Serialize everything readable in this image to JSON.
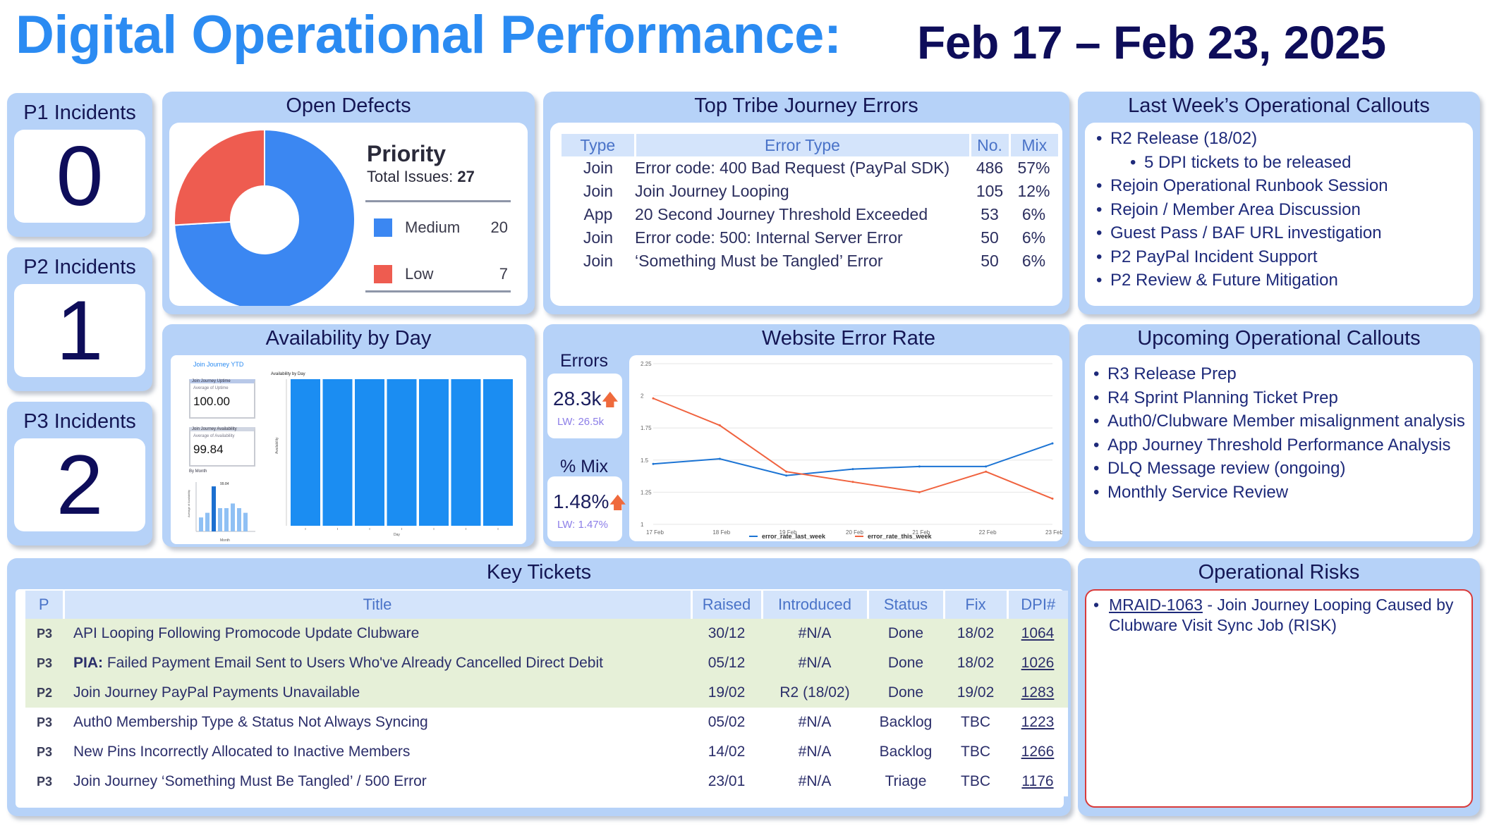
{
  "header": {
    "title": "Digital Operational Performance:",
    "date_range": "Feb 17 – Feb 23, 2025"
  },
  "incidents": [
    {
      "label": "P1 Incidents",
      "value": "0"
    },
    {
      "label": "P2 Incidents",
      "value": "1"
    },
    {
      "label": "P3 Incidents",
      "value": "2"
    }
  ],
  "open_defects": {
    "title": "Open Defects",
    "legend_title": "Priority",
    "total_label": "Total Issues:",
    "total_value": "27",
    "items": [
      {
        "label": "Medium",
        "value": "20",
        "color": "#3b87f2"
      },
      {
        "label": "Low",
        "value": "7",
        "color": "#ee5c50"
      }
    ]
  },
  "tribe_errors": {
    "title": "Top Tribe Journey Errors",
    "headers": [
      "Type",
      "Error Type",
      "No.",
      "Mix"
    ],
    "rows": [
      [
        "Join",
        "Error code: 400 Bad Request (PayPal SDK)",
        "486",
        "57%"
      ],
      [
        "Join",
        "Join Journey Looping",
        "105",
        "12%"
      ],
      [
        "App",
        "20 Second Journey Threshold Exceeded",
        "53",
        "6%"
      ],
      [
        "Join",
        "Error code: 500: Internal Server Error",
        "50",
        "6%"
      ],
      [
        "Join",
        "‘Something Must be Tangled’ Error",
        "50",
        "6%"
      ]
    ]
  },
  "last_week_callouts": {
    "title": "Last Week’s Operational Callouts",
    "items": [
      "R2 Release (18/02)",
      "5 DPI tickets to be released",
      "Rejoin Operational Runbook Session",
      "Rejoin / Member Area Discussion",
      "Guest Pass / BAF URL investigation",
      "P2 PayPal Incident Support",
      "P2 Review & Future Mitigation"
    ]
  },
  "availability": {
    "title": "Availability by Day",
    "mini_title": "Join Journey YTD",
    "uptime_label": "Join Journey Uptime",
    "uptime_sub": "Average of Uptime",
    "uptime_value": "100.00",
    "avail_label": "Join Journey Availability",
    "avail_sub": "Average of Availability",
    "avail_value": "99.84",
    "by_month": "By Month",
    "by_month_tag": "99.84",
    "chart_title": "Availability by Day",
    "chart_ylabel": "Availability",
    "chart_xlabel": "Day",
    "month_xlabel": "Month",
    "month_ylabel": "Average of Availability",
    "bars": [
      100,
      100,
      100,
      100,
      100,
      100,
      100
    ],
    "month_bars": [
      96.5,
      97,
      99.84,
      97.5,
      97.5,
      98,
      97.5,
      97
    ]
  },
  "error_rate": {
    "title": "Website Error Rate",
    "errors_label": "Errors",
    "errors_value": "28.3k",
    "errors_lw": "LW: 26.5k",
    "mix_label": "% Mix",
    "mix_value": "1.48%",
    "mix_lw": "LW: 1.47%"
  },
  "chart_data": {
    "type": "line",
    "x": [
      "17 Feb",
      "18 Feb",
      "19 Feb",
      "20 Feb",
      "21 Feb",
      "22 Feb",
      "23 Feb"
    ],
    "ylim": [
      1,
      2.25
    ],
    "yticks": [
      "2.25",
      "2",
      "1.75",
      "1.5",
      "1.25",
      "1"
    ],
    "series": [
      {
        "name": "error_rate_last_week",
        "color": "#1c74d4",
        "values": [
          1.47,
          1.51,
          1.38,
          1.43,
          1.45,
          1.45,
          1.63
        ]
      },
      {
        "name": "error_rate_this_week",
        "color": "#f0623e",
        "values": [
          1.98,
          1.77,
          1.41,
          1.33,
          1.25,
          1.41,
          1.2
        ]
      }
    ]
  },
  "upcoming_callouts": {
    "title": "Upcoming Operational Callouts",
    "items": [
      "R3 Release Prep",
      "R4 Sprint Planning Ticket Prep",
      "Auth0/Clubware Member misalignment analysis",
      "App Journey Threshold Performance Analysis",
      "DLQ Message review (ongoing)",
      "Monthly Service Review"
    ]
  },
  "key_tickets": {
    "title": "Key Tickets",
    "headers": [
      "P",
      "Title",
      "Raised",
      "Introduced",
      "Status",
      "Fix",
      "DPI#"
    ],
    "rows": [
      {
        "p": "P3",
        "prefix": "",
        "title": "API Looping Following Promocode Update Clubware",
        "raised": "30/12",
        "introduced": "#N/A",
        "status": "Done",
        "fix": "18/02",
        "dpi": "1064",
        "done": true
      },
      {
        "p": "P3",
        "prefix": "PIA:",
        "title": "Failed Payment Email Sent to Users Who've Already Cancelled Direct Debit",
        "raised": "05/12",
        "introduced": "#N/A",
        "status": "Done",
        "fix": "18/02",
        "dpi": "1026",
        "done": true
      },
      {
        "p": "P2",
        "prefix": "",
        "title": "Join Journey PayPal Payments Unavailable",
        "raised": "19/02",
        "introduced": "R2 (18/02)",
        "status": "Done",
        "fix": "19/02",
        "dpi": "1283",
        "done": true
      },
      {
        "p": "P3",
        "prefix": "",
        "title": "Auth0 Membership Type & Status Not Always Syncing",
        "raised": "05/02",
        "introduced": "#N/A",
        "status": "Backlog",
        "fix": "TBC",
        "dpi": "1223",
        "done": false
      },
      {
        "p": "P3",
        "prefix": "",
        "title": "New Pins Incorrectly Allocated to Inactive Members",
        "raised": "14/02",
        "introduced": "#N/A",
        "status": "Backlog",
        "fix": "TBC",
        "dpi": "1266",
        "done": false
      },
      {
        "p": "P3",
        "prefix": "",
        "title": "Join Journey ‘Something Must Be Tangled’ / 500 Error",
        "raised": "23/01",
        "introduced": "#N/A",
        "status": "Triage",
        "fix": "TBC",
        "dpi": "1176",
        "done": false
      }
    ]
  },
  "risks": {
    "title": "Operational Risks",
    "link": "MRAID-1063",
    "text": " - Join Journey Looping Caused by Clubware Visit Sync Job (RISK)"
  }
}
